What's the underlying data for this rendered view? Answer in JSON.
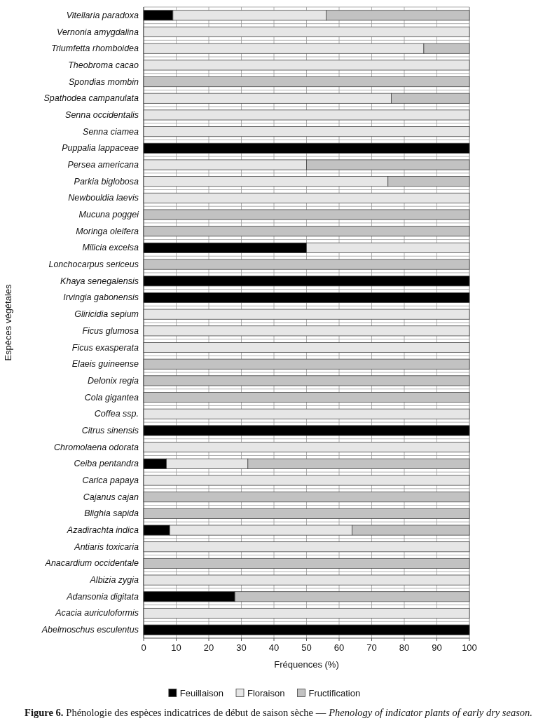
{
  "chart_data": {
    "type": "bar",
    "orientation": "horizontal",
    "stacked": true,
    "xlabel": "Fréquences (%)",
    "ylabel": "Espèces végétales",
    "categories": [
      "Vitellaria paradoxa",
      "Vernonia amygdalina",
      "Triumfetta rhomboidea",
      "Theobroma cacao",
      "Spondias mombin",
      "Spathodea campanulata",
      "Senna occidentalis",
      "Senna ciamea",
      "Puppalia lappaceae",
      "Persea americana",
      "Parkia biglobosa",
      "Newbouldia laevis",
      "Mucuna poggei",
      "Moringa oleifera",
      "Milicia excelsa",
      "Lonchocarpus sericeus",
      "Khaya senegalensis",
      "Irvingia gabonensis",
      "Gliricidia sepium",
      "Ficus glumosa",
      "Ficus exasperata",
      "Elaeis guineense",
      "Delonix regia",
      "Cola gigantea",
      "Coffea ssp.",
      "Citrus sinensis",
      "Chromolaena odorata",
      "Ceiba pentandra",
      "Carica papaya",
      "Cajanus cajan",
      "Blighia sapida",
      "Azadirachta indica",
      "Antiaris toxicaria",
      "Anacardium occidentale",
      "Albizia zygia",
      "Adansonia digitata",
      "Acacia auriculoformis",
      "Abelmoschus esculentus"
    ],
    "series": [
      {
        "name": "Feuillaison",
        "color": "#000000",
        "values": [
          9,
          0,
          0,
          0,
          0,
          0,
          0,
          0,
          100,
          0,
          0,
          0,
          0,
          0,
          50,
          0,
          100,
          100,
          0,
          0,
          0,
          0,
          0,
          0,
          0,
          100,
          0,
          7,
          0,
          0,
          0,
          8,
          0,
          0,
          0,
          28,
          0,
          100
        ]
      },
      {
        "name": "Floraison",
        "color": "#e6e6e6",
        "values": [
          47,
          100,
          86,
          100,
          0,
          76,
          100,
          100,
          0,
          50,
          75,
          100,
          0,
          0,
          50,
          0,
          0,
          0,
          100,
          100,
          100,
          0,
          0,
          0,
          100,
          0,
          100,
          25,
          100,
          0,
          0,
          56,
          100,
          0,
          100,
          0,
          100,
          0
        ]
      },
      {
        "name": "Fructification",
        "color": "#c2c2c2",
        "values": [
          44,
          0,
          14,
          0,
          100,
          24,
          0,
          0,
          0,
          50,
          25,
          0,
          100,
          100,
          0,
          100,
          0,
          0,
          0,
          0,
          0,
          100,
          100,
          100,
          0,
          0,
          0,
          68,
          0,
          100,
          100,
          36,
          0,
          100,
          0,
          72,
          0,
          0
        ]
      }
    ],
    "xlim": [
      0,
      100
    ],
    "xticks": [
      0,
      10,
      20,
      30,
      40,
      50,
      60,
      70,
      80,
      90,
      100
    ],
    "grid": true,
    "legend": "bottom",
    "annotations": [
      "Figure 6.",
      "Phénologie des espèces indicatrices de début de saison sèche —",
      "Phenology of indicator plants of early dry season."
    ]
  }
}
